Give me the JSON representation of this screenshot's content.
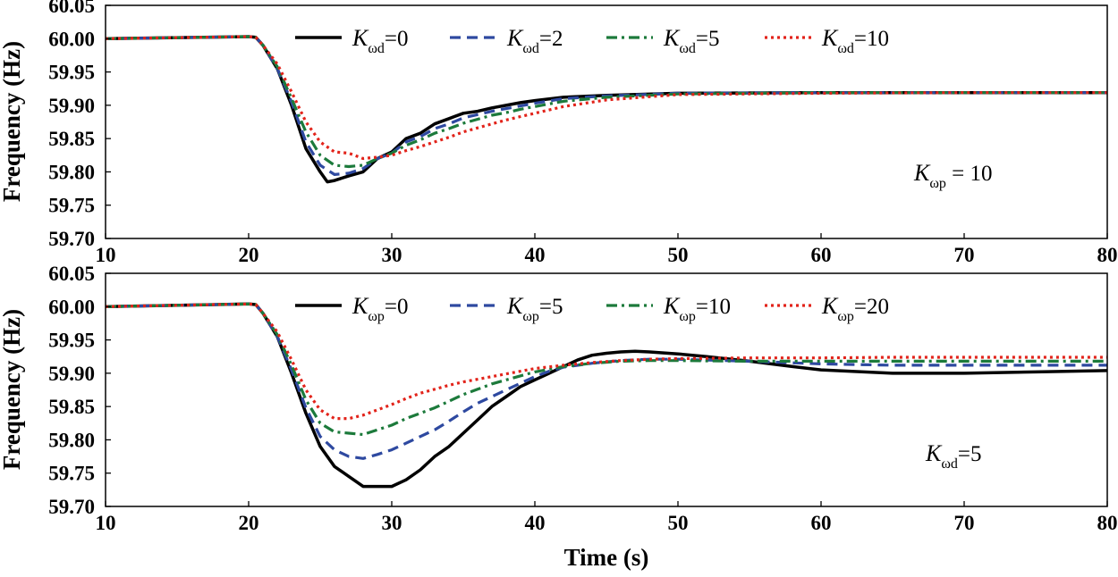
{
  "chart_data": [
    {
      "type": "line",
      "title": "",
      "xlabel": "",
      "ylabel": "Frequency (Hz)",
      "xlim": [
        10,
        80
      ],
      "ylim": [
        59.7,
        60.05
      ],
      "xticks": [
        "10",
        "20",
        "30",
        "40",
        "50",
        "60",
        "70",
        "80"
      ],
      "yticks": [
        "59.70",
        "59.75",
        "59.80",
        "59.85",
        "59.90",
        "59.95",
        "60.00",
        "60.05"
      ],
      "legend_position": "top-center",
      "annotation": {
        "symbol": "K",
        "sub": "ωp",
        "rest": " = 10"
      },
      "series": [
        {
          "name": "Kωd=0",
          "symbol": "K",
          "sub": "ωd",
          "rest": "=0",
          "color": "#000000",
          "dash": "solid",
          "x": [
            10,
            20,
            20.5,
            21,
            22,
            23,
            24,
            25,
            25.5,
            26,
            27,
            28,
            29,
            30,
            31,
            32,
            33,
            34,
            35,
            36,
            37,
            38,
            39,
            40,
            42,
            45,
            50,
            60,
            70,
            80
          ],
          "y": [
            60.0,
            60.003,
            60.002,
            59.99,
            59.955,
            59.9,
            59.835,
            59.8,
            59.785,
            59.787,
            59.794,
            59.8,
            59.82,
            59.83,
            59.85,
            59.858,
            59.872,
            59.88,
            59.888,
            59.891,
            59.896,
            59.9,
            59.904,
            59.907,
            59.912,
            59.915,
            59.918,
            59.919,
            59.919,
            59.919
          ]
        },
        {
          "name": "Kωd=2",
          "symbol": "K",
          "sub": "ωd",
          "rest": "=2",
          "color": "#2e49a0",
          "dash": "dashed",
          "x": [
            10,
            20,
            20.5,
            21,
            22,
            23,
            24,
            25,
            26,
            27,
            28,
            29,
            30,
            31,
            32,
            33,
            34,
            35,
            36,
            37,
            38,
            39,
            40,
            42,
            45,
            50,
            60,
            70,
            80
          ],
          "y": [
            60.0,
            60.003,
            60.002,
            59.99,
            59.955,
            59.905,
            59.845,
            59.81,
            59.796,
            59.798,
            59.805,
            59.82,
            59.828,
            59.845,
            59.853,
            59.865,
            59.872,
            59.881,
            59.886,
            59.891,
            59.895,
            59.899,
            59.903,
            59.91,
            59.914,
            59.918,
            59.919,
            59.919,
            59.919
          ]
        },
        {
          "name": "Kωd=5",
          "symbol": "K",
          "sub": "ωd",
          "rest": "=5",
          "color": "#1c7a3b",
          "dash": "dashdot",
          "x": [
            10,
            20,
            20.5,
            21,
            22,
            23,
            24,
            25,
            26,
            27,
            28,
            29,
            30,
            31,
            32,
            33,
            34,
            35,
            36,
            37,
            38,
            39,
            40,
            42,
            45,
            50,
            60,
            70,
            80
          ],
          "y": [
            60.0,
            60.003,
            60.002,
            59.99,
            59.958,
            59.91,
            59.86,
            59.825,
            59.81,
            59.808,
            59.81,
            59.82,
            59.828,
            59.84,
            59.848,
            59.858,
            59.865,
            59.873,
            59.879,
            59.885,
            59.889,
            59.894,
            59.898,
            59.906,
            59.912,
            59.917,
            59.919,
            59.919,
            59.919
          ]
        },
        {
          "name": "Kωd=10",
          "symbol": "K",
          "sub": "ωd",
          "rest": "=10",
          "color": "#e2231a",
          "dash": "dotted",
          "x": [
            10,
            20,
            20.5,
            21,
            22,
            23,
            24,
            25,
            26,
            27,
            28,
            29,
            30,
            31,
            32,
            33,
            34,
            35,
            36,
            37,
            38,
            39,
            40,
            42,
            45,
            50,
            60,
            70,
            80
          ],
          "y": [
            60.0,
            60.003,
            60.002,
            59.99,
            59.962,
            59.92,
            59.875,
            59.845,
            59.83,
            59.828,
            59.82,
            59.822,
            59.825,
            59.832,
            59.838,
            59.845,
            59.852,
            59.86,
            59.866,
            59.872,
            59.878,
            59.883,
            59.888,
            59.898,
            59.908,
            59.916,
            59.918,
            59.919,
            59.919
          ]
        }
      ]
    },
    {
      "type": "line",
      "title": "",
      "xlabel": "Time (s)",
      "ylabel": "Frequency (Hz)",
      "xlim": [
        10,
        80
      ],
      "ylim": [
        59.7,
        60.05
      ],
      "xticks": [
        "10",
        "20",
        "30",
        "40",
        "50",
        "60",
        "70",
        "80"
      ],
      "yticks": [
        "59.70",
        "59.75",
        "59.80",
        "59.85",
        "59.90",
        "59.95",
        "60.00",
        "60.05"
      ],
      "legend_position": "top-center",
      "annotation": {
        "symbol": "K",
        "sub": "ωd",
        "rest": "=5"
      },
      "series": [
        {
          "name": "Kωp=0",
          "symbol": "K",
          "sub": "ωp",
          "rest": "=0",
          "color": "#000000",
          "dash": "solid",
          "x": [
            10,
            20,
            20.5,
            21,
            22,
            23,
            24,
            25,
            26,
            27,
            28,
            29,
            30,
            31,
            32,
            33,
            34,
            35,
            36,
            37,
            38,
            39,
            40,
            41,
            42,
            43,
            44,
            45,
            46,
            47,
            48,
            50,
            52,
            55,
            58,
            60,
            65,
            70,
            75,
            80
          ],
          "y": [
            60.0,
            60.004,
            60.003,
            59.99,
            59.955,
            59.9,
            59.84,
            59.79,
            59.76,
            59.745,
            59.73,
            59.73,
            59.73,
            59.74,
            59.755,
            59.775,
            59.79,
            59.81,
            59.83,
            59.85,
            59.865,
            59.88,
            59.89,
            59.9,
            59.91,
            59.92,
            59.927,
            59.93,
            59.932,
            59.933,
            59.932,
            59.929,
            59.925,
            59.918,
            59.91,
            59.905,
            59.9,
            59.9,
            59.902,
            59.904
          ]
        },
        {
          "name": "Kωp=5",
          "symbol": "K",
          "sub": "ωp",
          "rest": "=5",
          "color": "#2e49a0",
          "dash": "dashed",
          "x": [
            10,
            20,
            20.5,
            21,
            22,
            23,
            24,
            25,
            26,
            27,
            28,
            29,
            30,
            31,
            32,
            33,
            34,
            35,
            36,
            37,
            38,
            39,
            40,
            41,
            42,
            44,
            46,
            48,
            50,
            55,
            60,
            65,
            70,
            75,
            80
          ],
          "y": [
            60.0,
            60.004,
            60.003,
            59.99,
            59.955,
            59.905,
            59.848,
            59.805,
            59.785,
            59.775,
            59.772,
            59.778,
            59.785,
            59.795,
            59.805,
            59.815,
            59.828,
            59.842,
            59.855,
            59.865,
            59.875,
            59.885,
            59.895,
            59.903,
            59.909,
            59.915,
            59.919,
            59.921,
            59.921,
            59.918,
            59.914,
            59.912,
            59.912,
            59.912,
            59.912
          ]
        },
        {
          "name": "Kωp=10",
          "symbol": "K",
          "sub": "ωp",
          "rest": "=10",
          "color": "#1c7a3b",
          "dash": "dashdot",
          "x": [
            10,
            20,
            20.5,
            21,
            22,
            23,
            24,
            25,
            26,
            27,
            28,
            29,
            30,
            31,
            32,
            33,
            34,
            35,
            36,
            37,
            38,
            39,
            40,
            42,
            44,
            46,
            48,
            50,
            55,
            60,
            65,
            70,
            75,
            80
          ],
          "y": [
            60.0,
            60.004,
            60.003,
            59.99,
            59.958,
            59.912,
            59.86,
            59.825,
            59.812,
            59.81,
            59.808,
            59.815,
            59.822,
            59.832,
            59.84,
            59.848,
            59.858,
            59.868,
            59.876,
            59.884,
            59.89,
            59.896,
            59.902,
            59.91,
            59.915,
            59.918,
            59.919,
            59.919,
            59.918,
            59.918,
            59.918,
            59.918,
            59.918,
            59.918
          ]
        },
        {
          "name": "Kωp=20",
          "symbol": "K",
          "sub": "ωp",
          "rest": "=20",
          "color": "#e2231a",
          "dash": "dotted",
          "x": [
            10,
            20,
            20.5,
            21,
            22,
            23,
            24,
            25,
            26,
            27,
            28,
            29,
            30,
            31,
            32,
            33,
            34,
            35,
            36,
            37,
            38,
            39,
            40,
            42,
            44,
            46,
            48,
            50,
            55,
            60,
            65,
            70,
            75,
            80
          ],
          "y": [
            60.0,
            60.004,
            60.003,
            59.99,
            59.962,
            59.92,
            59.875,
            59.845,
            59.832,
            59.832,
            59.837,
            59.845,
            59.853,
            59.862,
            59.87,
            59.876,
            59.882,
            59.887,
            59.891,
            59.895,
            59.899,
            59.903,
            59.907,
            59.912,
            59.916,
            59.919,
            59.921,
            59.922,
            59.923,
            59.923,
            59.924,
            59.924,
            59.924,
            59.924
          ]
        }
      ]
    }
  ]
}
